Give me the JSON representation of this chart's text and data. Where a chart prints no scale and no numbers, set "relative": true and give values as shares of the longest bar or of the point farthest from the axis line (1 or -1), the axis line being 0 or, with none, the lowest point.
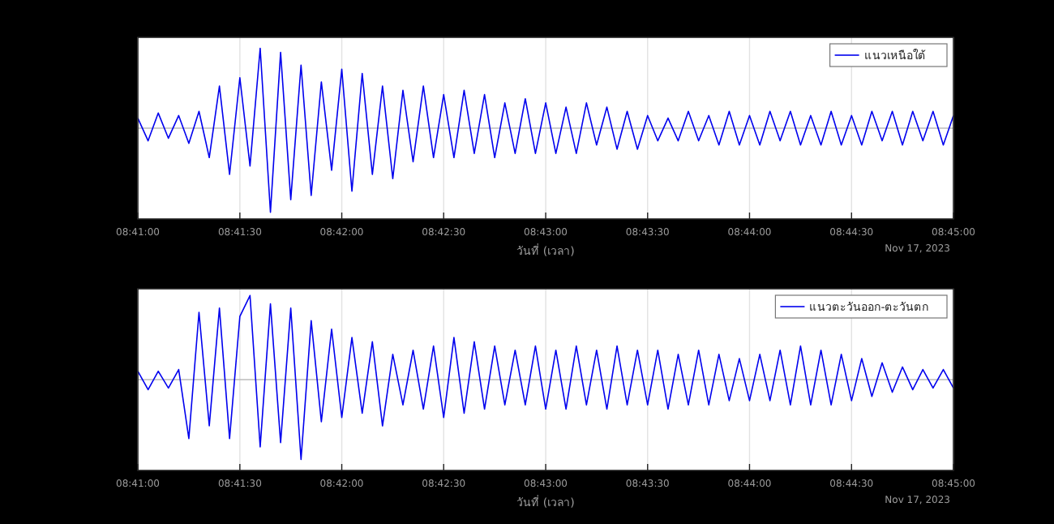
{
  "chart_data": [
    {
      "type": "line",
      "relative": true,
      "xlabel": "วันที่ (เวลา)",
      "legend": "top right",
      "grid": "x",
      "annotations": [
        "Nov 17, 2023"
      ],
      "xlim": [
        8.68333,
        8.75
      ],
      "xticks": [
        {
          "value": 8.68333,
          "label": "08:41:00"
        },
        {
          "value": 8.69167,
          "label": "08:41:30"
        },
        {
          "value": 8.7,
          "label": "08:42:00"
        },
        {
          "value": 8.70833,
          "label": "08:42:30"
        },
        {
          "value": 8.71667,
          "label": "08:43:00"
        },
        {
          "value": 8.725,
          "label": "08:43:30"
        },
        {
          "value": 8.73333,
          "label": "08:44:00"
        },
        {
          "value": 8.74167,
          "label": "08:44:30"
        },
        {
          "value": 8.75,
          "label": "08:45:00"
        }
      ],
      "x": [
        8.68333,
        8.68417,
        8.685,
        8.68583,
        8.68667,
        8.6875,
        8.68833,
        8.68917,
        8.69,
        8.69083,
        8.69167,
        8.6925,
        8.69333,
        8.69417,
        8.695,
        8.69583,
        8.69667,
        8.6975,
        8.69833,
        8.69917,
        8.7,
        8.70083,
        8.70167,
        8.7025,
        8.70333,
        8.70417,
        8.705,
        8.70583,
        8.70667,
        8.7075,
        8.70833,
        8.70917,
        8.71,
        8.71083,
        8.71167,
        8.7125,
        8.71333,
        8.71417,
        8.715,
        8.71583,
        8.71667,
        8.7175,
        8.71833,
        8.71917,
        8.72,
        8.72083,
        8.72167,
        8.7225,
        8.72333,
        8.72417,
        8.725,
        8.72583,
        8.72667,
        8.7275,
        8.72833,
        8.72917,
        8.73,
        8.73083,
        8.73167,
        8.7325,
        8.73333,
        8.73417,
        8.735,
        8.73583,
        8.73667,
        8.7375,
        8.73833,
        8.73917,
        8.74,
        8.74083,
        8.74167,
        8.7425,
        8.74333,
        8.74417,
        8.745,
        8.74583,
        8.74667,
        8.7475,
        8.74833,
        8.74917,
        8.75
      ],
      "series": [
        {
          "name": "แนวเหนือใต้",
          "color": "#0000ee",
          "values": [
            0.12,
            -0.15,
            0.18,
            -0.12,
            0.15,
            -0.18,
            0.2,
            -0.35,
            0.5,
            -0.55,
            0.6,
            -0.45,
            0.95,
            -1.0,
            0.9,
            -0.85,
            0.75,
            -0.8,
            0.55,
            -0.5,
            0.7,
            -0.75,
            0.65,
            -0.55,
            0.5,
            -0.6,
            0.45,
            -0.4,
            0.5,
            -0.35,
            0.4,
            -0.35,
            0.45,
            -0.3,
            0.4,
            -0.35,
            0.3,
            -0.3,
            0.35,
            -0.3,
            0.3,
            -0.3,
            0.25,
            -0.3,
            0.3,
            -0.2,
            0.25,
            -0.25,
            0.2,
            -0.25,
            0.15,
            -0.15,
            0.12,
            -0.15,
            0.2,
            -0.15,
            0.15,
            -0.2,
            0.2,
            -0.2,
            0.15,
            -0.2,
            0.2,
            -0.15,
            0.2,
            -0.2,
            0.15,
            -0.2,
            0.2,
            -0.2,
            0.15,
            -0.2,
            0.2,
            -0.15,
            0.2,
            -0.2,
            0.2,
            -0.15,
            0.2,
            -0.2,
            0.15
          ]
        }
      ]
    },
    {
      "type": "line",
      "relative": true,
      "xlabel": "วันที่ (เวลา)",
      "legend": "top right",
      "grid": "x",
      "annotations": [
        "Nov 17, 2023"
      ],
      "xlim": [
        8.68333,
        8.75
      ],
      "xticks": [
        {
          "value": 8.68333,
          "label": "08:41:00"
        },
        {
          "value": 8.69167,
          "label": "08:41:30"
        },
        {
          "value": 8.7,
          "label": "08:42:00"
        },
        {
          "value": 8.70833,
          "label": "08:42:30"
        },
        {
          "value": 8.71667,
          "label": "08:43:00"
        },
        {
          "value": 8.725,
          "label": "08:43:30"
        },
        {
          "value": 8.73333,
          "label": "08:44:00"
        },
        {
          "value": 8.74167,
          "label": "08:44:30"
        },
        {
          "value": 8.75,
          "label": "08:45:00"
        }
      ],
      "x": [
        8.68333,
        8.68417,
        8.685,
        8.68583,
        8.68667,
        8.6875,
        8.68833,
        8.68917,
        8.69,
        8.69083,
        8.69167,
        8.6925,
        8.69333,
        8.69417,
        8.695,
        8.69583,
        8.69667,
        8.6975,
        8.69833,
        8.69917,
        8.7,
        8.70083,
        8.70167,
        8.7025,
        8.70333,
        8.70417,
        8.705,
        8.70583,
        8.70667,
        8.7075,
        8.70833,
        8.70917,
        8.71,
        8.71083,
        8.71167,
        8.7125,
        8.71333,
        8.71417,
        8.715,
        8.71583,
        8.71667,
        8.7175,
        8.71833,
        8.71917,
        8.72,
        8.72083,
        8.72167,
        8.7225,
        8.72333,
        8.72417,
        8.725,
        8.72583,
        8.72667,
        8.7275,
        8.72833,
        8.72917,
        8.73,
        8.73083,
        8.73167,
        8.7325,
        8.73333,
        8.73417,
        8.735,
        8.73583,
        8.73667,
        8.7375,
        8.73833,
        8.73917,
        8.74,
        8.74083,
        8.74167,
        8.7425,
        8.74333,
        8.74417,
        8.745,
        8.74583,
        8.74667,
        8.7475,
        8.74833,
        8.74917,
        8.75
      ],
      "series": [
        {
          "name": "แนวตะวันออก-ตะวันตก",
          "color": "#0000ee",
          "values": [
            0.1,
            -0.12,
            0.1,
            -0.1,
            0.12,
            -0.7,
            0.8,
            -0.55,
            0.85,
            -0.7,
            0.75,
            1.0,
            -0.8,
            0.9,
            -0.75,
            0.85,
            -0.95,
            0.7,
            -0.5,
            0.6,
            -0.45,
            0.5,
            -0.4,
            0.45,
            -0.55,
            0.3,
            -0.3,
            0.35,
            -0.35,
            0.4,
            -0.45,
            0.5,
            -0.4,
            0.45,
            -0.35,
            0.4,
            -0.3,
            0.35,
            -0.3,
            0.4,
            -0.35,
            0.35,
            -0.35,
            0.4,
            -0.3,
            0.35,
            -0.35,
            0.4,
            -0.3,
            0.35,
            -0.3,
            0.35,
            -0.35,
            0.3,
            -0.3,
            0.35,
            -0.3,
            0.3,
            -0.25,
            0.25,
            -0.25,
            0.3,
            -0.25,
            0.35,
            -0.3,
            0.4,
            -0.3,
            0.35,
            -0.3,
            0.3,
            -0.25,
            0.25,
            -0.2,
            0.2,
            -0.15,
            0.15,
            -0.12,
            0.12,
            -0.1,
            0.12,
            -0.1
          ]
        }
      ]
    }
  ]
}
